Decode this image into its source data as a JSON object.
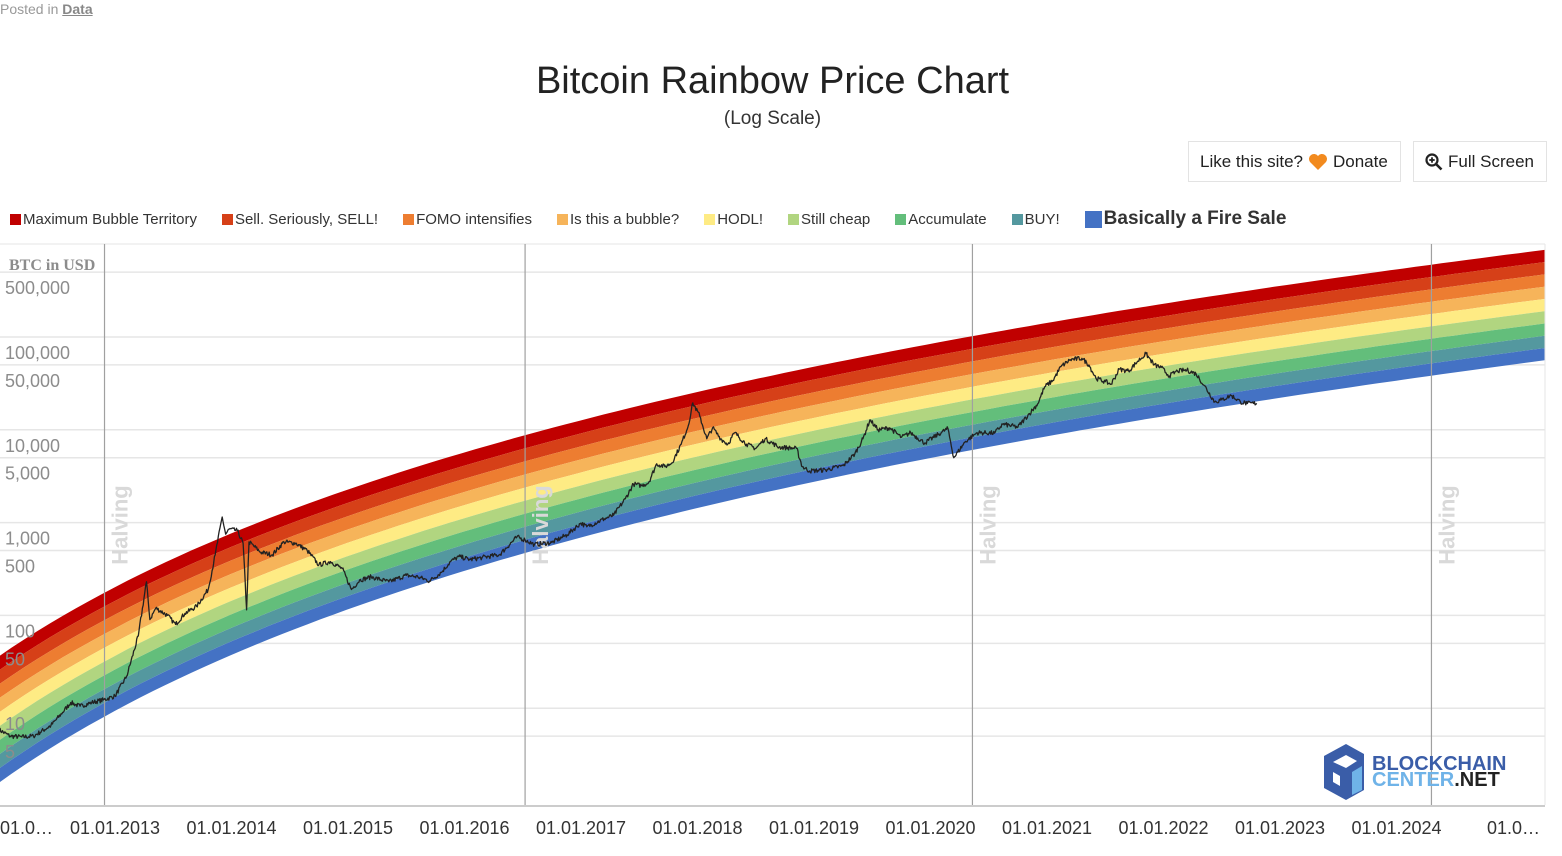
{
  "posted": {
    "prefix": "Posted in",
    "category": "Data"
  },
  "buttons": {
    "donate_prefix": "Like this site?",
    "donate": "Donate",
    "fullscreen": "Full Screen"
  },
  "logo": {
    "line1": "BLOCKCHAIN",
    "line2a": "CENTER",
    "line2b": ".NET"
  },
  "chart_data": {
    "type": "line",
    "title": "Bitcoin Rainbow Price Chart",
    "subtitle": "(Log Scale)",
    "ylabel": "BTC in USD",
    "yscale": "log",
    "ylim": [
      0.9,
      1000000
    ],
    "xlim": [
      2012.0,
      2025.27
    ],
    "y_ticks": [
      {
        "v": 500000,
        "label": "500,000"
      },
      {
        "v": 100000,
        "label": "100,000"
      },
      {
        "v": 50000,
        "label": "50,000"
      },
      {
        "v": 10000,
        "label": "10,000"
      },
      {
        "v": 5000,
        "label": "5,000"
      },
      {
        "v": 1000,
        "label": "1,000"
      },
      {
        "v": 500,
        "label": "500"
      },
      {
        "v": 100,
        "label": "100"
      },
      {
        "v": 50,
        "label": "50"
      },
      {
        "v": 10,
        "label": "10"
      },
      {
        "v": 5,
        "label": "5"
      }
    ],
    "x_ticks": [
      {
        "v": 2012,
        "label": "01.0…"
      },
      {
        "v": 2013,
        "label": "01.01.2013"
      },
      {
        "v": 2014,
        "label": "01.01.2014"
      },
      {
        "v": 2015,
        "label": "01.01.2015"
      },
      {
        "v": 2016,
        "label": "01.01.2016"
      },
      {
        "v": 2017,
        "label": "01.01.2017"
      },
      {
        "v": 2018,
        "label": "01.01.2018"
      },
      {
        "v": 2019,
        "label": "01.01.2019"
      },
      {
        "v": 2020,
        "label": "01.01.2020"
      },
      {
        "v": 2021,
        "label": "01.01.2021"
      },
      {
        "v": 2022,
        "label": "01.01.2022"
      },
      {
        "v": 2023,
        "label": "01.01.2023"
      },
      {
        "v": 2024,
        "label": "01.01.2024"
      },
      {
        "v": 2025,
        "label": "01.0…"
      }
    ],
    "halvings": [
      {
        "v": 2012.91,
        "label": "Halving"
      },
      {
        "v": 2016.52,
        "label": "Halving"
      },
      {
        "v": 2020.36,
        "label": "Halving"
      },
      {
        "v": 2024.3,
        "label": "Halving"
      }
    ],
    "bands": [
      {
        "name": "Maximum Bubble Territory",
        "color": "#c00000"
      },
      {
        "name": "Sell. Seriously, SELL!",
        "color": "#d64018"
      },
      {
        "name": "FOMO intensifies",
        "color": "#ed7d31"
      },
      {
        "name": "Is this a bubble?",
        "color": "#f6b45a"
      },
      {
        "name": "HODL!",
        "color": "#feeb84"
      },
      {
        "name": "Still cheap",
        "color": "#b1d580"
      },
      {
        "name": "Accumulate",
        "color": "#63be7b"
      },
      {
        "name": "BUY!",
        "color": "#54989f"
      },
      {
        "name": "Basically a Fire Sale",
        "color": "#4472c4"
      }
    ],
    "band_model": {
      "days_origin": "2009-01-09",
      "bottom": {
        "slope": 2.683,
        "intercept": -18.563
      },
      "top": {
        "slope": 2.582,
        "intercept": -16.495
      }
    },
    "series": [
      {
        "name": "BTC price",
        "color": "#222222",
        "points": [
          [
            2012.0,
            5.9
          ],
          [
            2012.1,
            5
          ],
          [
            2012.2,
            4.9
          ],
          [
            2012.3,
            5
          ],
          [
            2012.45,
            6.5
          ],
          [
            2012.55,
            9
          ],
          [
            2012.62,
            11.5
          ],
          [
            2012.7,
            10.5
          ],
          [
            2012.8,
            11.5
          ],
          [
            2012.9,
            12.3
          ],
          [
            2013.0,
            13.5
          ],
          [
            2013.1,
            22
          ],
          [
            2013.2,
            60
          ],
          [
            2013.27,
            230
          ],
          [
            2013.3,
            90
          ],
          [
            2013.35,
            120
          ],
          [
            2013.45,
            100
          ],
          [
            2013.52,
            80
          ],
          [
            2013.6,
            105
          ],
          [
            2013.7,
            125
          ],
          [
            2013.8,
            190
          ],
          [
            2013.86,
            450
          ],
          [
            2013.92,
            1150
          ],
          [
            2013.95,
            750
          ],
          [
            2013.98,
            850
          ],
          [
            2014.05,
            820
          ],
          [
            2014.1,
            600
          ],
          [
            2014.13,
            115
          ],
          [
            2014.15,
            620
          ],
          [
            2014.25,
            480
          ],
          [
            2014.35,
            450
          ],
          [
            2014.45,
            620
          ],
          [
            2014.55,
            600
          ],
          [
            2014.65,
            500
          ],
          [
            2014.75,
            350
          ],
          [
            2014.85,
            380
          ],
          [
            2014.95,
            320
          ],
          [
            2015.03,
            190
          ],
          [
            2015.1,
            240
          ],
          [
            2015.2,
            260
          ],
          [
            2015.35,
            230
          ],
          [
            2015.5,
            270
          ],
          [
            2015.6,
            260
          ],
          [
            2015.7,
            235
          ],
          [
            2015.8,
            290
          ],
          [
            2015.88,
            380
          ],
          [
            2015.95,
            430
          ],
          [
            2016.05,
            400
          ],
          [
            2016.15,
            420
          ],
          [
            2016.3,
            450
          ],
          [
            2016.45,
            700
          ],
          [
            2016.52,
            650
          ],
          [
            2016.6,
            580
          ],
          [
            2016.75,
            610
          ],
          [
            2016.88,
            740
          ],
          [
            2017.0,
            990
          ],
          [
            2017.05,
            900
          ],
          [
            2017.2,
            1100
          ],
          [
            2017.28,
            1200
          ],
          [
            2017.38,
            1800
          ],
          [
            2017.45,
            2600
          ],
          [
            2017.52,
            2500
          ],
          [
            2017.58,
            2700
          ],
          [
            2017.65,
            4300
          ],
          [
            2017.72,
            4000
          ],
          [
            2017.78,
            4400
          ],
          [
            2017.86,
            7000
          ],
          [
            2017.92,
            11000
          ],
          [
            2017.96,
            19500
          ],
          [
            2018.02,
            14000
          ],
          [
            2018.08,
            8000
          ],
          [
            2018.13,
            10500
          ],
          [
            2018.2,
            8000
          ],
          [
            2018.26,
            7000
          ],
          [
            2018.32,
            9300
          ],
          [
            2018.42,
            7000
          ],
          [
            2018.5,
            6300
          ],
          [
            2018.58,
            8000
          ],
          [
            2018.7,
            6500
          ],
          [
            2018.85,
            6300
          ],
          [
            2018.9,
            4000
          ],
          [
            2018.96,
            3600
          ],
          [
            2019.1,
            3700
          ],
          [
            2019.25,
            4100
          ],
          [
            2019.35,
            5500
          ],
          [
            2019.42,
            8000
          ],
          [
            2019.48,
            12800
          ],
          [
            2019.55,
            10000
          ],
          [
            2019.65,
            10500
          ],
          [
            2019.75,
            8300
          ],
          [
            2019.83,
            9300
          ],
          [
            2019.95,
            7200
          ],
          [
            2020.1,
            9500
          ],
          [
            2020.15,
            10300
          ],
          [
            2020.2,
            5000
          ],
          [
            2020.3,
            7500
          ],
          [
            2020.4,
            9300
          ],
          [
            2020.55,
            9200
          ],
          [
            2020.62,
            11500
          ],
          [
            2020.75,
            10700
          ],
          [
            2020.85,
            15000
          ],
          [
            2020.92,
            19000
          ],
          [
            2020.98,
            29000
          ],
          [
            2021.05,
            34000
          ],
          [
            2021.12,
            48000
          ],
          [
            2021.2,
            57000
          ],
          [
            2021.3,
            59000
          ],
          [
            2021.36,
            50000
          ],
          [
            2021.42,
            36000
          ],
          [
            2021.5,
            33000
          ],
          [
            2021.55,
            31000
          ],
          [
            2021.62,
            45000
          ],
          [
            2021.7,
            43000
          ],
          [
            2021.78,
            55000
          ],
          [
            2021.85,
            66000
          ],
          [
            2021.92,
            50000
          ],
          [
            2021.98,
            47000
          ],
          [
            2022.05,
            38000
          ],
          [
            2022.12,
            43000
          ],
          [
            2022.2,
            44000
          ],
          [
            2022.28,
            40000
          ],
          [
            2022.35,
            30000
          ],
          [
            2022.44,
            20000
          ],
          [
            2022.5,
            21000
          ],
          [
            2022.58,
            23500
          ],
          [
            2022.66,
            20000
          ],
          [
            2022.72,
            19200
          ],
          [
            2022.8,
            19300
          ]
        ]
      }
    ]
  }
}
